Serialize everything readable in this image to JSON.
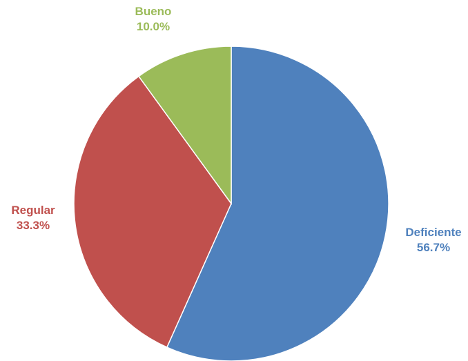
{
  "chart_data": {
    "type": "pie",
    "start": "top",
    "direction": "clockwise",
    "legend": "none",
    "slices": [
      {
        "label": "Deficiente",
        "value": 56.7,
        "value_label": "56.7%",
        "color": "#4f81bd"
      },
      {
        "label": "Regular",
        "value": 33.3,
        "value_label": "33.3%",
        "color": "#c0504d"
      },
      {
        "label": "Bueno",
        "value": 10.0,
        "value_label": "10.0%",
        "color": "#9bbb59"
      }
    ]
  }
}
